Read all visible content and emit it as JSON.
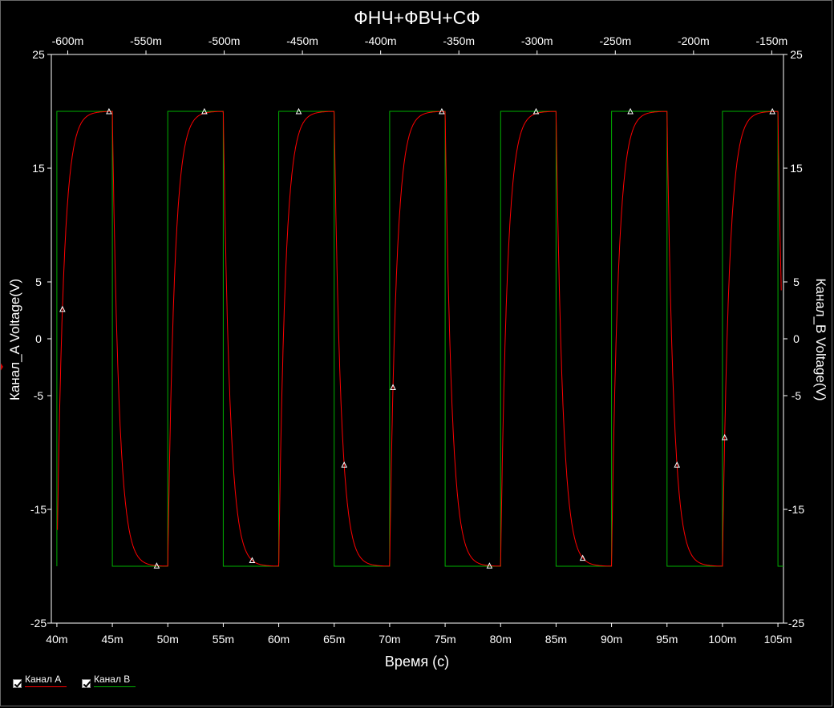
{
  "chart_data": {
    "type": "line",
    "title": "ФНЧ+ФВЧ+СФ",
    "xlabel": "Время (с)",
    "ylabel_left": "Канал_A Voltage(V)",
    "ylabel_right": "Канал_B Voltage(V)",
    "xlim": [
      0.0395,
      0.1055
    ],
    "ylim": [
      -25,
      25
    ],
    "x_ticks": [
      0.04,
      0.045,
      0.05,
      0.055,
      0.06,
      0.065,
      0.07,
      0.075,
      0.08,
      0.085,
      0.09,
      0.095,
      0.1,
      0.105
    ],
    "x_tick_labels": [
      "40m",
      "45m",
      "50m",
      "55m",
      "60m",
      "65m",
      "70m",
      "75m",
      "80m",
      "85m",
      "90m",
      "95m",
      "100m",
      "105m"
    ],
    "y_ticks": [
      -25,
      -15,
      -5,
      0,
      5,
      15,
      25
    ],
    "y_tick_labels": [
      "-25",
      "-15",
      "-5",
      "0",
      "5",
      "15",
      "25"
    ],
    "top_axis": {
      "xlim": [
        -0.6105,
        -0.1425
      ],
      "ticks": [
        -0.6,
        -0.55,
        -0.5,
        -0.45,
        -0.4,
        -0.35,
        -0.3,
        -0.25,
        -0.2,
        -0.15
      ],
      "tick_labels": [
        "-600m",
        "-550m",
        "-500m",
        "-450m",
        "-400m",
        "-350m",
        "-300m",
        "-250m",
        "-200m",
        "-150m"
      ]
    },
    "grid": false,
    "legend_position": "bottom-left",
    "series": [
      {
        "name": "Канал A",
        "color": "#ff0000",
        "kind": "rc_response",
        "high": 20,
        "low": -20,
        "period": 0.01,
        "first_edge": 0.04,
        "duty": 0.5,
        "tau": 0.0006,
        "marker_x": [
          0.0405,
          0.049,
          0.0576,
          0.0659,
          0.0703,
          0.079,
          0.0874,
          0.0959,
          0.1002
        ]
      },
      {
        "name": "Канал B",
        "color": "#00b000",
        "kind": "square",
        "high": 20,
        "low": -20,
        "period": 0.01,
        "first_edge": 0.04,
        "duty": 0.5,
        "marker_x": [
          0.0447,
          0.0533,
          0.0618,
          0.0747,
          0.0832,
          0.0917,
          0.1045
        ]
      }
    ]
  },
  "legend": {
    "items": [
      {
        "label": "Канал A",
        "color": "#ff0000",
        "checked": true
      },
      {
        "label": "Канал B",
        "color": "#00b000",
        "checked": true
      }
    ]
  }
}
